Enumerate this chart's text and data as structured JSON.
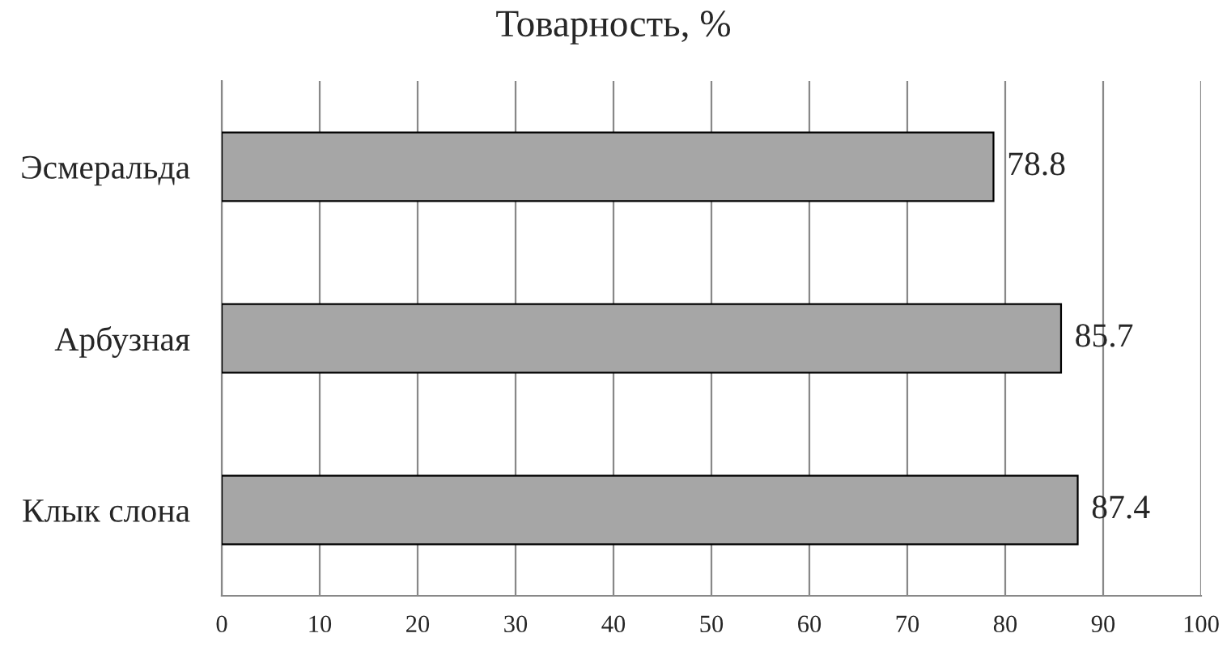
{
  "chart_data": {
    "type": "bar",
    "orientation": "horizontal",
    "title": "Товарность, %",
    "categories": [
      "Эсмеральда",
      "Арбузная",
      "Клык слона"
    ],
    "values": [
      78.8,
      85.7,
      87.4
    ],
    "color": "#a6a6a6",
    "data_labels": true,
    "xlim": [
      0,
      100
    ],
    "xticks": [
      0,
      10,
      20,
      30,
      40,
      50,
      60,
      70,
      80,
      90,
      100
    ],
    "grid": "x",
    "legend": false
  }
}
